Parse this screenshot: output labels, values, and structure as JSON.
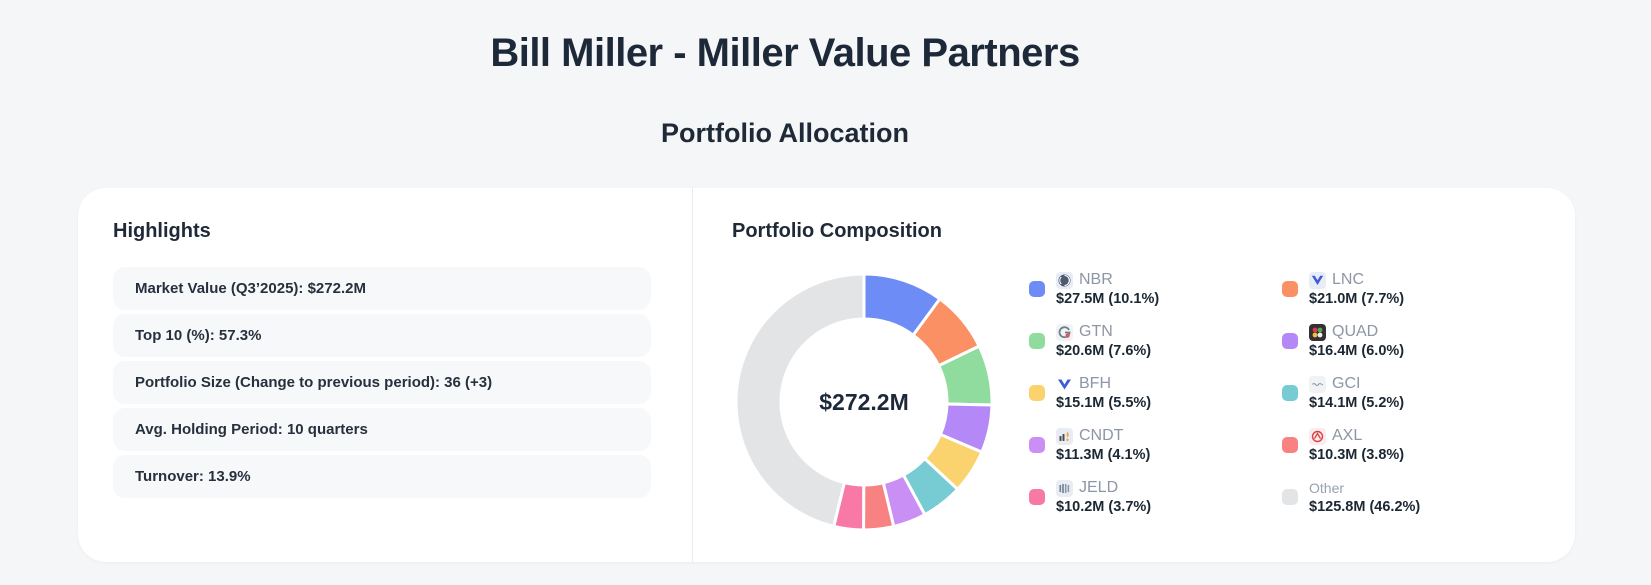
{
  "header": {
    "title": "Bill Miller - Miller Value Partners",
    "subtitle": "Portfolio Allocation"
  },
  "highlights": {
    "heading": "Highlights",
    "items": [
      "Market Value (Q3’2025): $272.2M",
      "Top 10 (%): 57.3%",
      "Portfolio Size (Change to previous period): 36 (+3)",
      "Avg. Holding Period: 10 quarters",
      "Turnover: 13.9%"
    ]
  },
  "composition": {
    "heading": "Portfolio Composition",
    "center_label": "$272.2M"
  },
  "chart_data": {
    "type": "pie",
    "title": "Portfolio Composition",
    "center_label": "$272.2M",
    "total_value_musd": 272.2,
    "units": "USD millions",
    "legend_position": "right",
    "start_angle": "top",
    "direction": "clockwise",
    "slices": [
      {
        "ticker": "NBR",
        "value_musd": 27.5,
        "pct": 10.1,
        "value_label": "$27.5M (10.1%)",
        "color": "#6e8cf5",
        "icon": "nbr-logo-icon"
      },
      {
        "ticker": "LNC",
        "value_musd": 21.0,
        "pct": 7.7,
        "value_label": "$21.0M (7.7%)",
        "color": "#fa9063",
        "icon": "lnc-logo-icon"
      },
      {
        "ticker": "GTN",
        "value_musd": 20.6,
        "pct": 7.6,
        "value_label": "$20.6M (7.6%)",
        "color": "#8fdc9e",
        "icon": "gtn-logo-icon"
      },
      {
        "ticker": "QUAD",
        "value_musd": 16.4,
        "pct": 6.0,
        "value_label": "$16.4M (6.0%)",
        "color": "#b489f7",
        "icon": "quad-logo-icon"
      },
      {
        "ticker": "BFH",
        "value_musd": 15.1,
        "pct": 5.5,
        "value_label": "$15.1M (5.5%)",
        "color": "#fbd36e",
        "icon": "bfh-logo-icon"
      },
      {
        "ticker": "GCI",
        "value_musd": 14.1,
        "pct": 5.2,
        "value_label": "$14.1M (5.2%)",
        "color": "#77cbd3",
        "icon": "gci-logo-icon"
      },
      {
        "ticker": "CNDT",
        "value_musd": 11.3,
        "pct": 4.1,
        "value_label": "$11.3M (4.1%)",
        "color": "#c98ff5",
        "icon": "cndt-logo-icon"
      },
      {
        "ticker": "AXL",
        "value_musd": 10.3,
        "pct": 3.8,
        "value_label": "$10.3M (3.8%)",
        "color": "#f88181",
        "icon": "axl-logo-icon"
      },
      {
        "ticker": "JELD",
        "value_musd": 10.2,
        "pct": 3.7,
        "value_label": "$10.2M (3.7%)",
        "color": "#f878a6",
        "icon": "jeld-logo-icon"
      },
      {
        "ticker": "Other",
        "value_musd": 125.8,
        "pct": 46.2,
        "value_label": "$125.8M (46.2%)",
        "color": "#e3e4e6",
        "icon": null
      }
    ]
  }
}
